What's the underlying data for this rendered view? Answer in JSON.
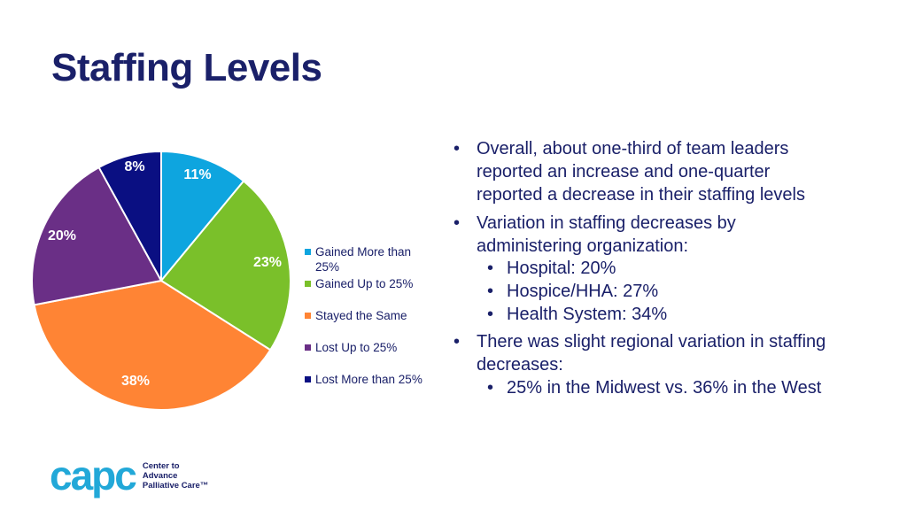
{
  "slide": {
    "title": "Staffing Levels",
    "bullets": [
      {
        "level": 1,
        "text": "Overall, about one-third of team leaders reported an increase and one-quarter reported a decrease in their staffing levels"
      },
      {
        "level": 1,
        "text": "Variation in staffing decreases by administering organization:"
      },
      {
        "level": 2,
        "text": "Hospital: 20%"
      },
      {
        "level": 2,
        "text": "Hospice/HHA: 27%"
      },
      {
        "level": 2,
        "text": "Health System: 34%"
      },
      {
        "level": 1,
        "text": "There was slight regional variation in staffing decreases:"
      },
      {
        "level": 2,
        "text": "25% in the Midwest vs. 36% in the West"
      }
    ],
    "logo": {
      "wordmark": "capc",
      "tagline": "Center to Advance Palliative Care™"
    }
  },
  "chart_data": {
    "type": "pie",
    "categories": [
      "Gained More than 25%",
      "Gained Up to 25%",
      "Stayed the Same",
      "Lost Up to 25%",
      "Lost More than 25%"
    ],
    "values": [
      11,
      23,
      38,
      20,
      8
    ],
    "value_labels": [
      "11%",
      "23%",
      "38%",
      "20%",
      "8%"
    ],
    "colors": [
      "#0ea5df",
      "#7ac02a",
      "#ff8434",
      "#6a2f86",
      "#0a0f82"
    ],
    "label_colors": [
      "#ffffff",
      "#ffffff",
      "#ffffff",
      "#ffffff",
      "#ffffff"
    ],
    "start_angle_deg": 0,
    "direction": "clockwise",
    "legend": "right"
  }
}
